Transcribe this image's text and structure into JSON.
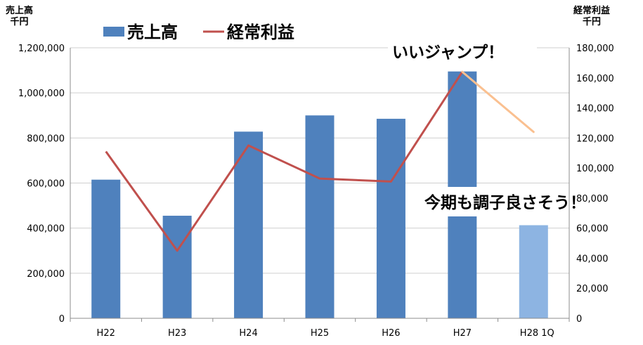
{
  "chart_data": {
    "type": "bar",
    "categories": [
      "H22",
      "H23",
      "H24",
      "H25",
      "H26",
      "H27",
      "H28 1Q"
    ],
    "series": [
      {
        "name": "売上高",
        "type": "bar",
        "axis": "left",
        "color": "#4F81BD",
        "highlight_color": "#8DB4E2",
        "values": [
          615000,
          455000,
          828000,
          900000,
          885000,
          1095000,
          413000
        ]
      },
      {
        "name": "経常利益",
        "type": "line",
        "axis": "right",
        "color": "#C0504D",
        "projection_color": "#FAC090",
        "values": [
          111000,
          45000,
          115000,
          93000,
          91000,
          164000,
          124000
        ]
      }
    ],
    "left_axis": {
      "label": "売上高\n千円",
      "ylim": [
        0,
        1200000
      ],
      "ticks": [
        "0",
        "200,000",
        "400,000",
        "600,000",
        "800,000",
        "1,000,000",
        "1,200,000"
      ]
    },
    "right_axis": {
      "label": "経常利益\n千円",
      "ylim": [
        0,
        180000
      ],
      "ticks": [
        "0",
        "20,000",
        "40,000",
        "60,000",
        "80,000",
        "100,000",
        "120,000",
        "140,000",
        "160,000",
        "180,000"
      ]
    },
    "legend": {
      "position": "top",
      "entries": [
        "売上高",
        "経常利益"
      ]
    },
    "annotations": [
      "いいジャンプ！",
      "今期も調子良さそう！"
    ],
    "grid": true
  }
}
